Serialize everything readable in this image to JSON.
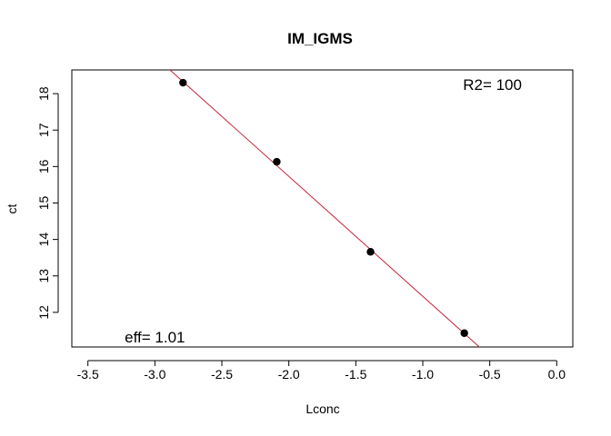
{
  "chart_data": {
    "type": "scatter",
    "title": "IM_IGMS",
    "xlabel": "Lconc",
    "ylabel": "ct",
    "xlim": [
      -3.62,
      0.12
    ],
    "ylim": [
      11.05,
      18.65
    ],
    "x_ticks": [
      -3.5,
      -3.0,
      -2.5,
      -2.0,
      -1.5,
      -1.0,
      -0.5,
      0.0
    ],
    "x_tick_labels": [
      "-3.5",
      "-3.0",
      "-2.5",
      "-2.0",
      "-1.5",
      "-1.0",
      "-0.5",
      "0.0"
    ],
    "y_ticks": [
      12,
      13,
      14,
      15,
      16,
      17,
      18
    ],
    "y_tick_labels": [
      "12",
      "13",
      "14",
      "15",
      "16",
      "17",
      "18"
    ],
    "grid": false,
    "points": [
      {
        "x": -2.79,
        "y": 18.3
      },
      {
        "x": -2.09,
        "y": 16.13
      },
      {
        "x": -1.39,
        "y": 13.66
      },
      {
        "x": -0.69,
        "y": 11.43
      }
    ],
    "fit_line": {
      "slope": -3.29,
      "intercept": 9.15,
      "color": "#c8223a"
    },
    "point_color": "#000000",
    "annotations": [
      {
        "text": "R2= 100",
        "x": -0.48,
        "y": 18.25
      },
      {
        "text": "eff= 1.01",
        "x": -3.0,
        "y": 11.32
      }
    ]
  }
}
